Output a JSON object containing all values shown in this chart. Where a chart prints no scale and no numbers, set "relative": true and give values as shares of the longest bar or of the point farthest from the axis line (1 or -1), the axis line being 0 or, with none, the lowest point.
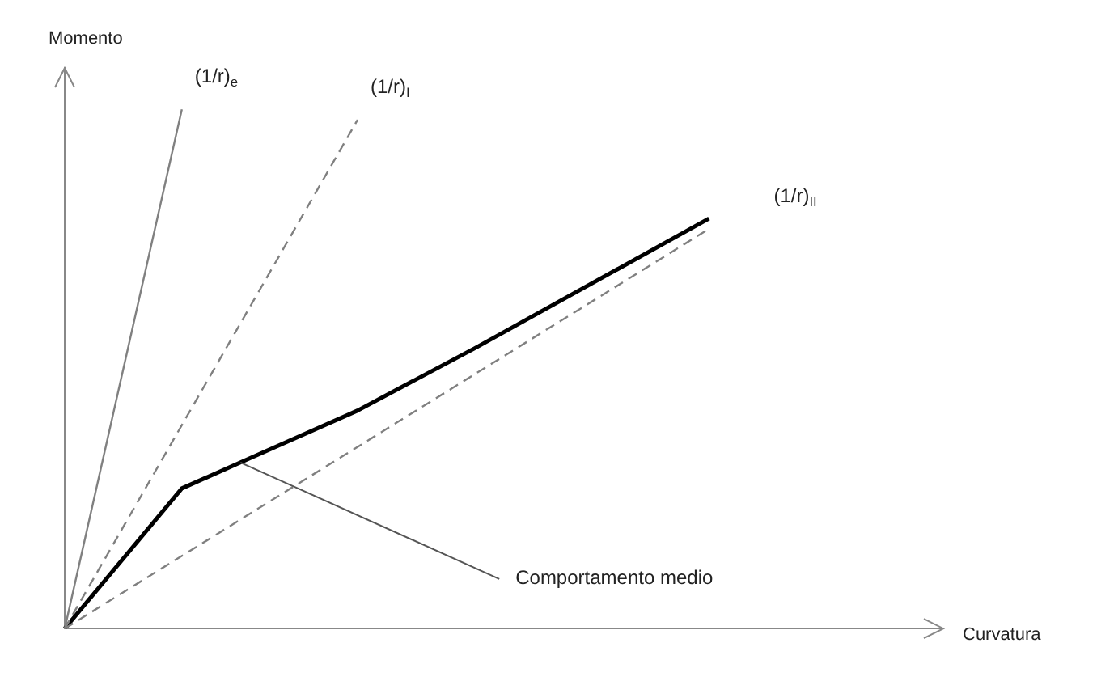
{
  "chart_data": {
    "type": "line",
    "relative": true,
    "xlabel": "Curvatura",
    "ylabel": "Momento",
    "grid": false,
    "legend": false,
    "marker": "none",
    "categories": [
      null,
      null,
      null,
      null,
      null,
      null,
      null,
      null,
      null,
      null,
      null,
      null,
      null,
      null,
      null,
      null
    ],
    "series": [
      {
        "name": "(1/r)$_{e}$",
        "color": "#808080",
        "line_style": "solid",
        "values": [
          0,
          null,
          1,
          null,
          null,
          null,
          null,
          null,
          null,
          null,
          null,
          null,
          null,
          null,
          null,
          null
        ]
      },
      {
        "name": "(1/r)$_{I}$",
        "color": "#808080",
        "line_style": "dashed",
        "values": [
          0,
          null,
          null,
          null,
          null,
          0.98,
          null,
          null,
          null,
          null,
          null,
          null,
          null,
          null,
          null,
          null
        ]
      },
      {
        "name": "(1/r)$_{II}$",
        "color": "#808080",
        "line_style": "dashed",
        "values": [
          0,
          null,
          null,
          null,
          null,
          null,
          null,
          null,
          null,
          null,
          null,
          0.77,
          null,
          null,
          null,
          null
        ]
      },
      {
        "color": "#000000",
        "line_style": "solid",
        "values": [
          0,
          null,
          0.27,
          0.32,
          null,
          0.42,
          null,
          0.54,
          null,
          null,
          null,
          0.79,
          null,
          null,
          null,
          null
        ]
      }
    ],
    "annotations": [
      "Comportamento medio"
    ]
  }
}
